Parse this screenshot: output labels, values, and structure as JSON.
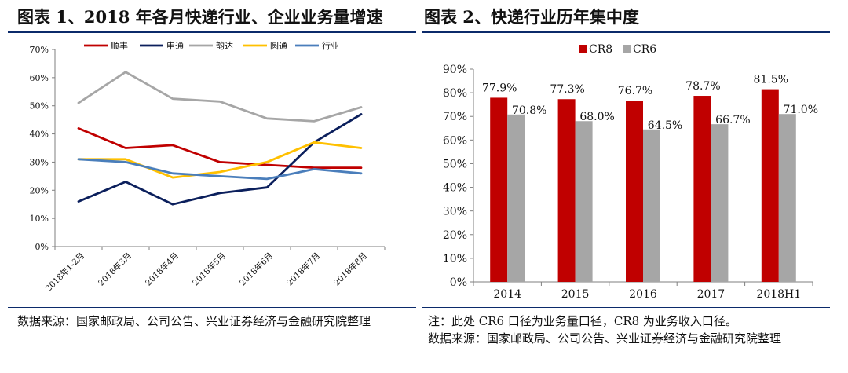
{
  "left_panel": {
    "title": "图表 1、2018 年各月快递行业、企业业务量增速",
    "source": "数据来源：国家邮政局、公司公告、兴业证券经济与金融研究院整理"
  },
  "right_panel": {
    "title": "图表 2、快递行业历年集中度",
    "note": "注：此处 CR6 口径为业务量口径，CR8 为业务收入口径。",
    "source": "数据来源：国家邮政局、公司公告、兴业证券经济与金融研究院整理"
  },
  "chart_data": [
    {
      "type": "line",
      "title": "",
      "xlabel": "",
      "ylabel": "",
      "ylim": [
        0,
        0.7
      ],
      "yticks": [
        "0%",
        "10%",
        "20%",
        "30%",
        "40%",
        "50%",
        "60%",
        "70%"
      ],
      "categories": [
        "2018年1-2月",
        "2018年3月",
        "2018年4月",
        "2018年5月",
        "2018年6月",
        "2018年7月",
        "2018年8月"
      ],
      "grid": false,
      "legend": "top",
      "series": [
        {
          "name": "顺丰",
          "color": "#c00000",
          "values": [
            0.42,
            0.35,
            0.36,
            0.3,
            0.29,
            0.28,
            0.28
          ]
        },
        {
          "name": "申通",
          "color": "#0b1f5c",
          "values": [
            0.16,
            0.23,
            0.15,
            0.19,
            0.21,
            0.37,
            0.47
          ]
        },
        {
          "name": "韵达",
          "color": "#a6a6a6",
          "values": [
            0.51,
            0.62,
            0.525,
            0.515,
            0.455,
            0.445,
            0.495
          ]
        },
        {
          "name": "圆通",
          "color": "#ffc000",
          "values": [
            0.31,
            0.31,
            0.245,
            0.265,
            0.3,
            0.37,
            0.35
          ]
        },
        {
          "name": "行业",
          "color": "#4a7ebb",
          "values": [
            0.31,
            0.3,
            0.26,
            0.25,
            0.24,
            0.275,
            0.26
          ]
        }
      ]
    },
    {
      "type": "bar",
      "title": "",
      "xlabel": "",
      "ylabel": "",
      "ylim": [
        0,
        0.9
      ],
      "yticks": [
        "0%",
        "10%",
        "20%",
        "30%",
        "40%",
        "50%",
        "60%",
        "70%",
        "80%",
        "90%"
      ],
      "categories": [
        "2014",
        "2015",
        "2016",
        "2017",
        "2018H1"
      ],
      "grid": false,
      "legend": "top-left",
      "series": [
        {
          "name": "CR8",
          "color": "#c00000",
          "values": [
            0.779,
            0.773,
            0.767,
            0.787,
            0.815
          ],
          "labels": [
            "77.9%",
            "77.3%",
            "76.7%",
            "78.7%",
            "81.5%"
          ]
        },
        {
          "name": "CR6",
          "color": "#a6a6a6",
          "values": [
            0.708,
            0.68,
            0.645,
            0.667,
            0.71
          ],
          "labels": [
            "70.8%",
            "68.0%",
            "64.5%",
            "66.7%",
            "71.0%"
          ]
        }
      ]
    }
  ]
}
